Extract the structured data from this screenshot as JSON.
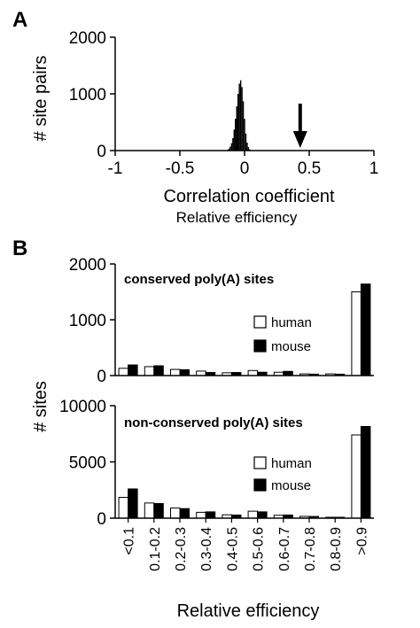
{
  "panel_a_label": "A",
  "panel_b_label": "B",
  "chart_data": [
    {
      "id": "A",
      "type": "bar",
      "xlabel": "Correlation coefficient",
      "xlabel_sub": "Relative efficiency",
      "ylabel": "# site pairs",
      "xlim": [
        -1,
        1
      ],
      "ylim": [
        0,
        2000
      ],
      "xticks": [
        "-1",
        "-0.5",
        "0",
        "0.5",
        "1"
      ],
      "xtick_values": [
        -1,
        -0.5,
        0,
        0.5,
        1
      ],
      "yticks": [
        "0",
        "1000",
        "2000"
      ],
      "ytick_values": [
        0,
        1000,
        2000
      ],
      "histogram": {
        "bin_width": 0.01,
        "x": [
          -0.14,
          -0.13,
          -0.12,
          -0.11,
          -0.1,
          -0.09,
          -0.08,
          -0.07,
          -0.06,
          -0.05,
          -0.04,
          -0.03,
          -0.02,
          -0.01,
          0.0,
          0.01,
          0.02,
          0.03,
          0.04,
          0.05
        ],
        "values": [
          5,
          15,
          35,
          70,
          130,
          220,
          370,
          560,
          780,
          1000,
          1180,
          1240,
          1120,
          870,
          560,
          300,
          140,
          60,
          20,
          6
        ]
      },
      "marker": {
        "x": 0.43,
        "label": ""
      }
    },
    {
      "id": "B1",
      "type": "bar",
      "title": "conserved poly(A) sites",
      "ylim": [
        0,
        2000
      ],
      "yticks": [
        "0",
        "1000",
        "2000"
      ],
      "ytick_values": [
        0,
        1000,
        2000
      ],
      "categories": [
        "<0.1",
        "0.1-0.2",
        "0.2-0.3",
        "0.3-0.4",
        "0.4-0.5",
        "0.5-0.6",
        "0.6-0.7",
        "0.7-0.8",
        "0.8-0.9",
        ">0.9"
      ],
      "series": [
        {
          "name": "human",
          "color": "#ffffff",
          "values": [
            130,
            160,
            110,
            80,
            50,
            90,
            60,
            30,
            30,
            1500
          ]
        },
        {
          "name": "mouse",
          "color": "#000000",
          "values": [
            190,
            175,
            105,
            55,
            55,
            60,
            75,
            25,
            25,
            1640
          ]
        }
      ],
      "legend": [
        "human",
        "mouse"
      ]
    },
    {
      "id": "B2",
      "type": "bar",
      "title": "non-conserved poly(A) sites",
      "ylabel": "# sites",
      "xlabel": "Relative efficiency",
      "ylim": [
        0,
        10000
      ],
      "yticks": [
        "0",
        "5000",
        "10000"
      ],
      "ytick_values": [
        0,
        5000,
        10000
      ],
      "categories": [
        "<0.1",
        "0.1-0.2",
        "0.2-0.3",
        "0.3-0.4",
        "0.4-0.5",
        "0.5-0.6",
        "0.6-0.7",
        "0.7-0.8",
        "0.8-0.9",
        ">0.9"
      ],
      "series": [
        {
          "name": "human",
          "color": "#ffffff",
          "values": [
            1850,
            1350,
            900,
            520,
            300,
            620,
            260,
            160,
            80,
            7400
          ]
        },
        {
          "name": "mouse",
          "color": "#000000",
          "values": [
            2600,
            1300,
            850,
            560,
            280,
            560,
            280,
            150,
            80,
            8150
          ]
        }
      ],
      "legend": [
        "human",
        "mouse"
      ]
    }
  ]
}
